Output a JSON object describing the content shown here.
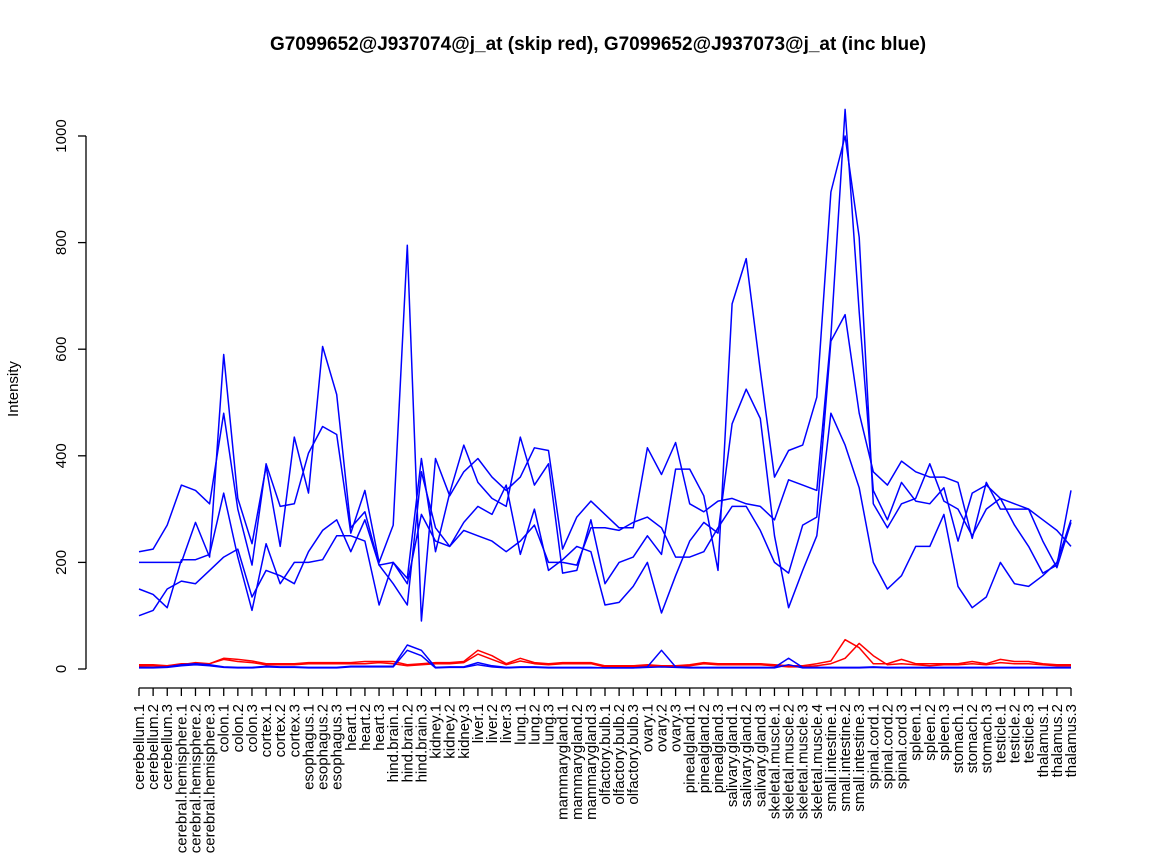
{
  "chart_data": {
    "type": "line",
    "title": "G7099652@J937074@j_at (skip red), G7099652@J937073@j_at (inc blue)",
    "ylabel": "Intensity",
    "xlabel": "",
    "ylim": [
      0,
      1050
    ],
    "yticks": [
      0,
      200,
      400,
      600,
      800,
      1000
    ],
    "categories": [
      "cerebellum.1",
      "cerebellum.2",
      "cerebellum.3",
      "cerebral.hemisphere.1",
      "cerebral.hemisphere.2",
      "cerebral.hemisphere.3",
      "colon.1",
      "colon.2",
      "colon.3",
      "cortex.1",
      "cortex.2",
      "cortex.3",
      "esophagus.1",
      "esophagus.2",
      "esophagus.3",
      "heart.1",
      "heart.2",
      "heart.3",
      "hind.brain.1",
      "hind.brain.2",
      "hind.brain.3",
      "kidney.1",
      "kidney.2",
      "kidney.3",
      "liver.1",
      "liver.2",
      "liver.3",
      "lung.1",
      "lung.2",
      "lung.3",
      "mammarygland.1",
      "mammarygland.2",
      "mammarygland.3",
      "olfactory.bulb.1",
      "olfactory.bulb.2",
      "olfactory.bulb.3",
      "ovary.1",
      "ovary.2",
      "ovary.3",
      "pinealgland.1",
      "pinealgland.2",
      "pinealgland.3",
      "salivary.gland.1",
      "salivary.gland.2",
      "salivary.gland.3",
      "skeletal.muscle.1",
      "skeletal.muscle.2",
      "skeletal.muscle.3",
      "skeletal.muscle.4",
      "small.intestine.1",
      "small.intestine.2",
      "small.intestine.3",
      "spinal.cord.1",
      "spinal.cord.2",
      "spinal.cord.3",
      "spleen.1",
      "spleen.2",
      "spleen.3",
      "stomach.1",
      "stomach.2",
      "stomach.3",
      "testicle.1",
      "testicle.2",
      "testicle.3",
      "thalamus.1",
      "thalamus.2",
      "thalamus.3"
    ],
    "series_colors": {
      "skip": "#ff0000",
      "inc": "#0000ff"
    },
    "series": [
      {
        "color": "#0000ff",
        "values": [
          220,
          225,
          270,
          345,
          335,
          310,
          480,
          300,
          195,
          385,
          305,
          310,
          405,
          455,
          440,
          255,
          335,
          200,
          270,
          795,
          90,
          395,
          325,
          370,
          395,
          360,
          335,
          360,
          415,
          410,
          225,
          285,
          315,
          290,
          265,
          265,
          415,
          365,
          425,
          310,
          295,
          315,
          320,
          310,
          305,
          280,
          355,
          345,
          335,
          625,
          1050,
          670,
          335,
          280,
          350,
          315,
          310,
          340,
          240,
          330,
          345,
          320,
          270,
          230,
          180,
          195,
          335
        ]
      },
      {
        "color": "#0000ff",
        "values": [
          200,
          200,
          200,
          200,
          275,
          210,
          590,
          320,
          235,
          380,
          230,
          435,
          330,
          605,
          515,
          265,
          295,
          195,
          200,
          170,
          395,
          220,
          330,
          420,
          350,
          320,
          305,
          435,
          345,
          385,
          180,
          185,
          280,
          160,
          200,
          210,
          250,
          215,
          375,
          375,
          325,
          185,
          685,
          770,
          560,
          360,
          410,
          420,
          510,
          895,
          1000,
          810,
          310,
          265,
          310,
          320,
          385,
          315,
          300,
          250,
          300,
          320,
          310,
          300,
          240,
          190,
          275
        ]
      },
      {
        "color": "#0000ff",
        "values": [
          150,
          140,
          115,
          205,
          205,
          215,
          330,
          210,
          110,
          235,
          160,
          200,
          200,
          205,
          250,
          250,
          240,
          120,
          200,
          160,
          290,
          240,
          230,
          260,
          250,
          240,
          220,
          240,
          270,
          200,
          200,
          195,
          265,
          265,
          260,
          275,
          285,
          265,
          210,
          210,
          220,
          265,
          305,
          305,
          260,
          200,
          180,
          270,
          285,
          615,
          665,
          480,
          370,
          345,
          390,
          370,
          360,
          360,
          350,
          245,
          350,
          300,
          300,
          300,
          280,
          260,
          230
        ]
      },
      {
        "color": "#0000ff",
        "values": [
          100,
          110,
          150,
          165,
          160,
          185,
          210,
          225,
          135,
          185,
          175,
          160,
          220,
          260,
          280,
          220,
          280,
          195,
          160,
          120,
          370,
          265,
          230,
          275,
          305,
          290,
          345,
          215,
          300,
          185,
          205,
          230,
          220,
          120,
          125,
          155,
          200,
          105,
          175,
          240,
          275,
          255,
          460,
          525,
          470,
          250,
          115,
          185,
          250,
          480,
          420,
          340,
          200,
          150,
          175,
          230,
          230,
          290,
          155,
          115,
          135,
          200,
          160,
          155,
          175,
          200,
          280
        ]
      },
      {
        "color": "#ff0000",
        "values": [
          8,
          8,
          6,
          10,
          10,
          10,
          20,
          18,
          15,
          10,
          10,
          10,
          12,
          12,
          12,
          12,
          14,
          14,
          14,
          8,
          10,
          12,
          12,
          14,
          35,
          25,
          10,
          20,
          12,
          10,
          12,
          12,
          12,
          6,
          6,
          6,
          8,
          6,
          6,
          8,
          12,
          10,
          10,
          10,
          10,
          8,
          6,
          6,
          10,
          15,
          55,
          40,
          10,
          10,
          18,
          10,
          10,
          10,
          10,
          14,
          10,
          18,
          14,
          14,
          10,
          8,
          8
        ]
      },
      {
        "color": "#ff0000",
        "values": [
          5,
          6,
          6,
          8,
          12,
          10,
          18,
          14,
          12,
          8,
          8,
          8,
          10,
          10,
          10,
          10,
          10,
          12,
          10,
          6,
          8,
          10,
          10,
          12,
          28,
          18,
          8,
          15,
          10,
          8,
          10,
          10,
          10,
          4,
          4,
          4,
          6,
          4,
          4,
          6,
          10,
          8,
          8,
          8,
          8,
          6,
          4,
          4,
          6,
          10,
          20,
          48,
          25,
          8,
          10,
          8,
          6,
          8,
          8,
          10,
          8,
          12,
          10,
          10,
          8,
          6,
          6
        ]
      },
      {
        "color": "#0000ff",
        "values": [
          3,
          3,
          4,
          8,
          10,
          8,
          4,
          3,
          3,
          5,
          4,
          4,
          3,
          3,
          3,
          5,
          5,
          5,
          5,
          45,
          35,
          3,
          4,
          4,
          12,
          6,
          3,
          4,
          4,
          3,
          3,
          3,
          3,
          2,
          2,
          2,
          4,
          35,
          4,
          3,
          3,
          3,
          3,
          3,
          3,
          3,
          20,
          3,
          3,
          3,
          3,
          3,
          4,
          3,
          3,
          3,
          3,
          3,
          3,
          3,
          3,
          3,
          3,
          3,
          3,
          3,
          3
        ]
      },
      {
        "color": "#0000ff",
        "values": [
          2,
          2,
          3,
          6,
          8,
          6,
          3,
          2,
          2,
          4,
          3,
          3,
          2,
          2,
          2,
          4,
          4,
          4,
          4,
          35,
          25,
          2,
          3,
          3,
          8,
          4,
          2,
          3,
          3,
          2,
          2,
          2,
          2,
          2,
          2,
          2,
          3,
          4,
          3,
          2,
          2,
          2,
          2,
          2,
          2,
          2,
          8,
          2,
          2,
          2,
          2,
          2,
          3,
          2,
          2,
          2,
          2,
          2,
          2,
          2,
          2,
          2,
          2,
          2,
          2,
          2,
          2
        ]
      }
    ]
  }
}
